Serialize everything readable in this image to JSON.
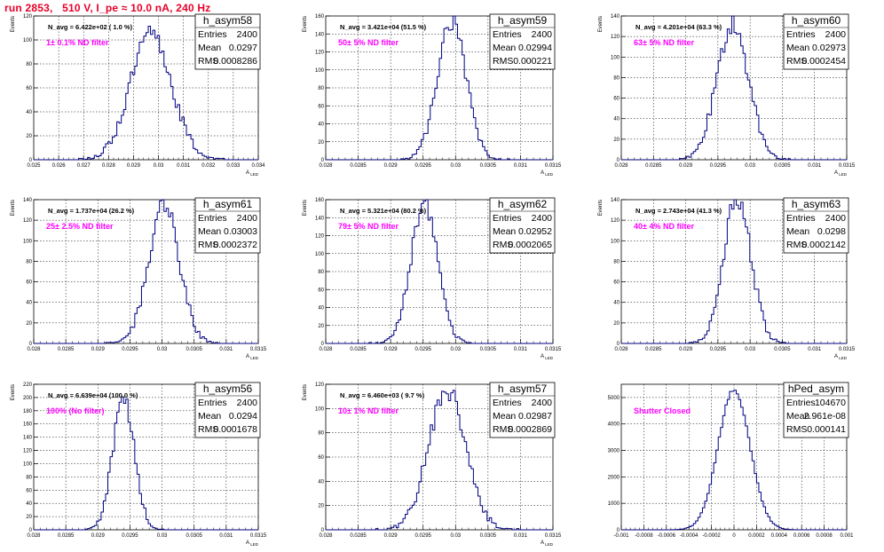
{
  "canvas_title": "run 2853,   510 V, I_pe ≈ 10.0 nA, 240 Hz",
  "colors": {
    "title": "#e8002a",
    "hist_line": "#000080",
    "annotation": "#ff00ff"
  },
  "chart_data": [
    {
      "type": "histogram",
      "name": "h_asym58",
      "stats": {
        "entries": "2400",
        "mean": "0.0297",
        "rms": "0.0008286"
      },
      "annotation_navg": "N_avg = 6.422e+02 ( 1.0 %)",
      "annotation_filter": "1± 0.1% ND filter",
      "xlabel": "A_LED",
      "ylabel": "Events",
      "xlim": [
        0.025,
        0.034
      ],
      "xticks": [
        "0.025",
        "0.026",
        "0.027",
        "0.028",
        "0.029",
        "0.03",
        "0.031",
        "0.032",
        "0.033",
        "0.034"
      ],
      "ylim": [
        0,
        120
      ],
      "yticks": [
        "0",
        "20",
        "40",
        "60",
        "80",
        "100",
        "120"
      ],
      "gauss": {
        "mean": 0.0297,
        "sigma": 0.0008286,
        "peak": 104
      }
    },
    {
      "type": "histogram",
      "name": "h_asym59",
      "stats": {
        "entries": "2400",
        "mean": "0.02994",
        "rms": "0.000221"
      },
      "annotation_navg": "N_avg = 3.421e+04 (51.5 %)",
      "annotation_filter": "50± 5% ND filter",
      "xlabel": "A_LED",
      "ylabel": "Events",
      "xlim": [
        0.028,
        0.0315
      ],
      "xticks": [
        "0.028",
        "0.0285",
        "0.029",
        "0.0295",
        "0.03",
        "0.0305",
        "0.031",
        "0.0315"
      ],
      "ylim": [
        0,
        160
      ],
      "yticks": [
        "0",
        "20",
        "40",
        "60",
        "80",
        "100",
        "120",
        "140",
        "160"
      ],
      "gauss": {
        "mean": 0.02994,
        "sigma": 0.000221,
        "peak": 152
      }
    },
    {
      "type": "histogram",
      "name": "h_asym60",
      "stats": {
        "entries": "2400",
        "mean": "0.02973",
        "rms": "0.0002454"
      },
      "annotation_navg": "N_avg = 4.201e+04 (63.3 %)",
      "annotation_filter": "63± 5% ND filter",
      "xlabel": "A_LED",
      "ylabel": "Events",
      "xlim": [
        0.028,
        0.0315
      ],
      "xticks": [
        "0.028",
        "0.0285",
        "0.029",
        "0.0295",
        "0.03",
        "0.0305",
        "0.031",
        "0.0315"
      ],
      "ylim": [
        0,
        140
      ],
      "yticks": [
        "0",
        "20",
        "40",
        "60",
        "80",
        "100",
        "120",
        "140"
      ],
      "gauss": {
        "mean": 0.02973,
        "sigma": 0.0002454,
        "peak": 132
      }
    },
    {
      "type": "histogram",
      "name": "h_asym61",
      "stats": {
        "entries": "2400",
        "mean": "0.03003",
        "rms": "0.0002372"
      },
      "annotation_navg": "N_avg = 1.737e+04 (26.2 %)",
      "annotation_filter": "25± 2.5% ND filter",
      "xlabel": "A_LED",
      "ylabel": "Events",
      "xlim": [
        0.028,
        0.0315
      ],
      "xticks": [
        "0.028",
        "0.0285",
        "0.029",
        "0.0295",
        "0.03",
        "0.0305",
        "0.031",
        "0.0315"
      ],
      "ylim": [
        0,
        140
      ],
      "yticks": [
        "0",
        "20",
        "40",
        "60",
        "80",
        "100",
        "120",
        "140"
      ],
      "gauss": {
        "mean": 0.03003,
        "sigma": 0.0002372,
        "peak": 137
      }
    },
    {
      "type": "histogram",
      "name": "h_asym62",
      "stats": {
        "entries": "2400",
        "mean": "0.02952",
        "rms": "0.0002065"
      },
      "annotation_navg": "N_avg = 5.321e+04 (80.2 %)",
      "annotation_filter": "79± 5% ND filter",
      "xlabel": "A_LED",
      "ylabel": "Events",
      "xlim": [
        0.028,
        0.0315
      ],
      "xticks": [
        "0.028",
        "0.0285",
        "0.029",
        "0.0295",
        "0.03",
        "0.0305",
        "0.031",
        "0.0315"
      ],
      "ylim": [
        0,
        160
      ],
      "yticks": [
        "0",
        "20",
        "40",
        "60",
        "80",
        "100",
        "120",
        "140",
        "160"
      ],
      "gauss": {
        "mean": 0.02952,
        "sigma": 0.0002065,
        "peak": 157
      }
    },
    {
      "type": "histogram",
      "name": "h_asym63",
      "stats": {
        "entries": "2400",
        "mean": "0.0298",
        "rms": "0.0002142"
      },
      "annotation_navg": "N_avg = 2.743e+04 (41.3 %)",
      "annotation_filter": "40± 4% ND filter",
      "xlabel": "A_LED",
      "ylabel": "Events",
      "xlim": [
        0.028,
        0.0315
      ],
      "xticks": [
        "0.028",
        "0.0285",
        "0.029",
        "0.0295",
        "0.03",
        "0.0305",
        "0.031",
        "0.0315"
      ],
      "ylim": [
        0,
        140
      ],
      "yticks": [
        "0",
        "20",
        "40",
        "60",
        "80",
        "100",
        "120",
        "140"
      ],
      "gauss": {
        "mean": 0.0298,
        "sigma": 0.0002142,
        "peak": 142
      }
    },
    {
      "type": "histogram",
      "name": "h_asym56",
      "stats": {
        "entries": "2400",
        "mean": "0.0294",
        "rms": "0.0001678"
      },
      "annotation_navg": "N_avg = 6.639e+04 (100.0 %)",
      "annotation_filter": "100% (No filter)",
      "xlabel": "A_LED",
      "ylabel": "Events",
      "xlim": [
        0.028,
        0.0315
      ],
      "xticks": [
        "0.028",
        "0.0285",
        "0.029",
        "0.0295",
        "0.03",
        "0.0305",
        "0.031",
        "0.0315"
      ],
      "ylim": [
        0,
        220
      ],
      "yticks": [
        "0",
        "20",
        "40",
        "60",
        "80",
        "100",
        "120",
        "140",
        "160",
        "180",
        "200",
        "220"
      ],
      "gauss": {
        "mean": 0.0294,
        "sigma": 0.0001678,
        "peak": 200
      }
    },
    {
      "type": "histogram",
      "name": "h_asym57",
      "stats": {
        "entries": "2400",
        "mean": "0.02987",
        "rms": "0.0002869"
      },
      "annotation_navg": "N_avg = 6.460e+03 ( 9.7 %)",
      "annotation_filter": "10± 1% ND filter",
      "xlabel": "A_LED",
      "ylabel": "Events",
      "xlim": [
        0.028,
        0.0315
      ],
      "xticks": [
        "0.028",
        "0.0285",
        "0.029",
        "0.0295",
        "0.03",
        "0.0305",
        "0.031",
        "0.0315"
      ],
      "ylim": [
        0,
        120
      ],
      "yticks": [
        "0",
        "20",
        "40",
        "60",
        "80",
        "100",
        "120"
      ],
      "gauss": {
        "mean": 0.02987,
        "sigma": 0.0002869,
        "peak": 115
      }
    },
    {
      "type": "histogram",
      "name": "hPed_asym",
      "stats": {
        "entries": "104670",
        "mean": "2.961e-08",
        "rms": "0.000141"
      },
      "annotation_navg": "",
      "annotation_filter": "Shutter Closed",
      "xlabel": "",
      "ylabel": "",
      "xlim": [
        -0.001,
        0.001
      ],
      "xticks": [
        "-0.001",
        "-0.0008",
        "-0.0006",
        "-0.0004",
        "-0.0002",
        "0",
        "0.0002",
        "0.0004",
        "0.0006",
        "0.0008",
        "0.001"
      ],
      "ylim": [
        0,
        5500
      ],
      "yticks": [
        "0",
        "1000",
        "2000",
        "3000",
        "4000",
        "5000"
      ],
      "gauss": {
        "mean": 0.0,
        "sigma": 0.000141,
        "peak": 5300
      }
    }
  ]
}
